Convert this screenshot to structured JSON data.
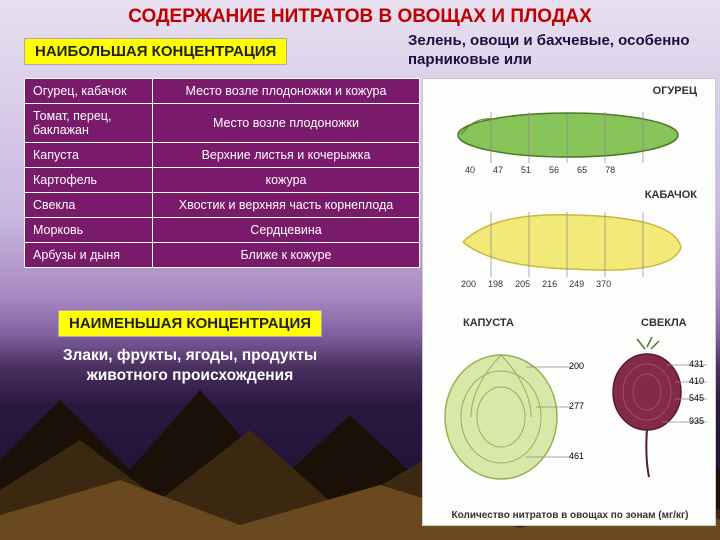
{
  "title": "СОДЕРЖАНИЕ НИТРАТОВ В ОВОЩАХ И ПЛОДАХ",
  "label_max": "НАИБОЛЬШАЯ КОНЦЕНТРАЦИЯ",
  "subtitle_max": "Зелень, овощи и бахчевые, особенно парниковые или",
  "label_min": "НАИМЕНЬШАЯ КОНЦЕНТРАЦИЯ",
  "subtitle_min": "Злаки, фрукты, ягоды, продукты животного происхождения",
  "table": {
    "rows": [
      {
        "veg": "Огурец, кабачок",
        "loc": "Место возле плодоножки и кожура"
      },
      {
        "veg": "Томат, перец, баклажан",
        "loc": "Место возле плодоножки"
      },
      {
        "veg": "Капуста",
        "loc": "Верхние листья и кочерыжка"
      },
      {
        "veg": "Картофель",
        "loc": "кожура"
      },
      {
        "veg": "Свекла",
        "loc": "Хвостик и верхняя часть корнеплода"
      },
      {
        "veg": "Морковь",
        "loc": "Сердцевина"
      },
      {
        "veg": "Арбузы и дыня",
        "loc": "Ближе к кожуре"
      }
    ]
  },
  "infographic": {
    "caption": "Количество нитратов в овощах по зонам (мг/кг)",
    "cucumber": {
      "title": "ОГУРЕЦ",
      "values": [
        40,
        47,
        51,
        56,
        65,
        78
      ]
    },
    "squash": {
      "title": "КАБАЧОК",
      "values": [
        200,
        198,
        205,
        216,
        249,
        370
      ]
    },
    "cabbage": {
      "title": "КАПУСТА",
      "values": [
        200,
        277,
        461
      ]
    },
    "beet": {
      "title": "СВЕКЛА",
      "values": [
        431,
        410,
        545,
        935
      ]
    }
  },
  "colors": {
    "table_bg": "#7a1a6a",
    "label_bg": "#ffff00",
    "title_color": "#c00000",
    "cucumber_fill": "#87c45a",
    "cucumber_stroke": "#4a7a2a",
    "squash_fill": "#f2e978",
    "squash_stroke": "#c9b93a",
    "cabbage_fill": "#d8e8a8",
    "cabbage_stroke": "#98b050",
    "beet_fill": "#832a47",
    "beet_stroke": "#5a1a30"
  }
}
